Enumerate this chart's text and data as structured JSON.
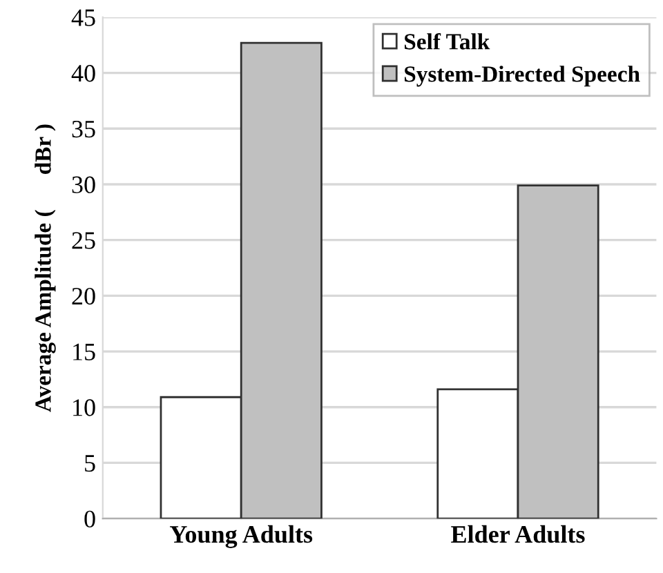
{
  "chart_data": {
    "type": "bar",
    "ylabel": "Average Amplitude (      dBr )",
    "categories": [
      "Young Adults",
      "Elder Adults"
    ],
    "series": [
      {
        "name": "Self Talk",
        "color": "#ffffff",
        "values": [
          10.9,
          11.6
        ]
      },
      {
        "name": "System-Directed Speech",
        "color": "#c0c0c0",
        "values": [
          42.7,
          29.9
        ]
      }
    ],
    "ylim": [
      0,
      45
    ],
    "yticks": [
      0,
      5,
      10,
      15,
      20,
      25,
      30,
      35,
      40,
      45
    ],
    "grid": "y",
    "legend": "top right"
  }
}
